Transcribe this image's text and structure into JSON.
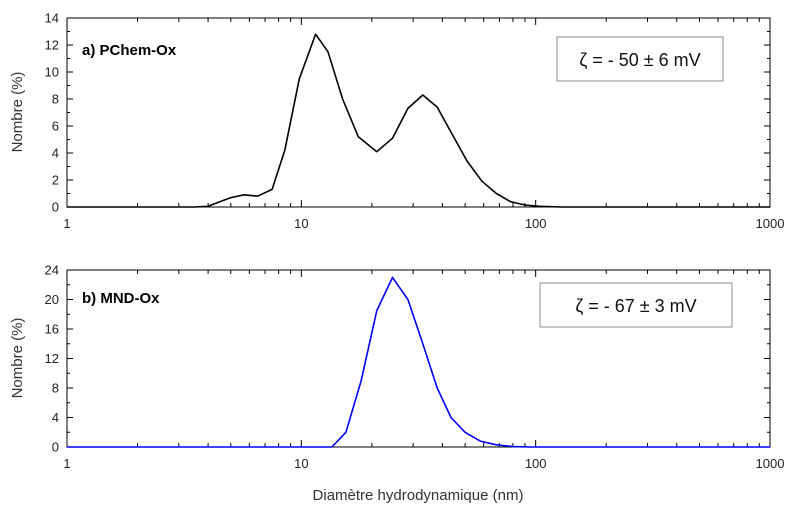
{
  "chart_data": [
    {
      "type": "line",
      "panel_label": "a) PChem-Ox",
      "annotation": "ζ = - 50 ± 6 mV",
      "xscale": "log",
      "xlim": [
        1,
        1000
      ],
      "ylim": [
        0,
        14
      ],
      "xticks": [
        "1",
        "10",
        "100",
        "1000"
      ],
      "yticks": [
        "0",
        "2",
        "4",
        "6",
        "8",
        "10",
        "12",
        "14"
      ],
      "ylabel": "Nombre (%)",
      "xlabel": "",
      "series": [
        {
          "color": "#000000",
          "x": [
            1,
            3.5,
            4,
            4.5,
            5,
            5.7,
            6.5,
            7.5,
            8.5,
            9.8,
            11.5,
            13,
            15,
            17.5,
            21,
            24.5,
            28.5,
            33,
            38,
            44,
            51,
            59,
            68,
            78,
            90,
            104,
            130,
            200,
            1000
          ],
          "y": [
            0,
            0,
            0.05,
            0.4,
            0.7,
            0.9,
            0.8,
            1.3,
            4.2,
            9.5,
            12.8,
            11.5,
            8,
            5.2,
            4.1,
            5.1,
            7.3,
            8.3,
            7.4,
            5.4,
            3.4,
            1.9,
            1.0,
            0.4,
            0.15,
            0.05,
            0,
            0,
            0
          ]
        }
      ]
    },
    {
      "type": "line",
      "panel_label": "b) MND-Ox",
      "annotation": "ζ = - 67 ± 3 mV",
      "xscale": "log",
      "xlim": [
        1,
        1000
      ],
      "ylim": [
        0,
        24
      ],
      "xticks": [
        "1",
        "10",
        "100",
        "1000"
      ],
      "yticks": [
        "0",
        "4",
        "8",
        "12",
        "16",
        "20",
        "24"
      ],
      "ylabel": "Nombre (%)",
      "xlabel": "Diamètre hydrodynamique (nm)",
      "series": [
        {
          "color": "#0000ff",
          "x": [
            1,
            13.5,
            15.5,
            18,
            21,
            24.5,
            28.5,
            33,
            38,
            43.5,
            50,
            58,
            68,
            80,
            95,
            1000
          ],
          "y": [
            0,
            0,
            2,
            9,
            18.5,
            23,
            20,
            14,
            8,
            4,
            2,
            0.8,
            0.3,
            0.05,
            0,
            0
          ]
        }
      ]
    }
  ]
}
